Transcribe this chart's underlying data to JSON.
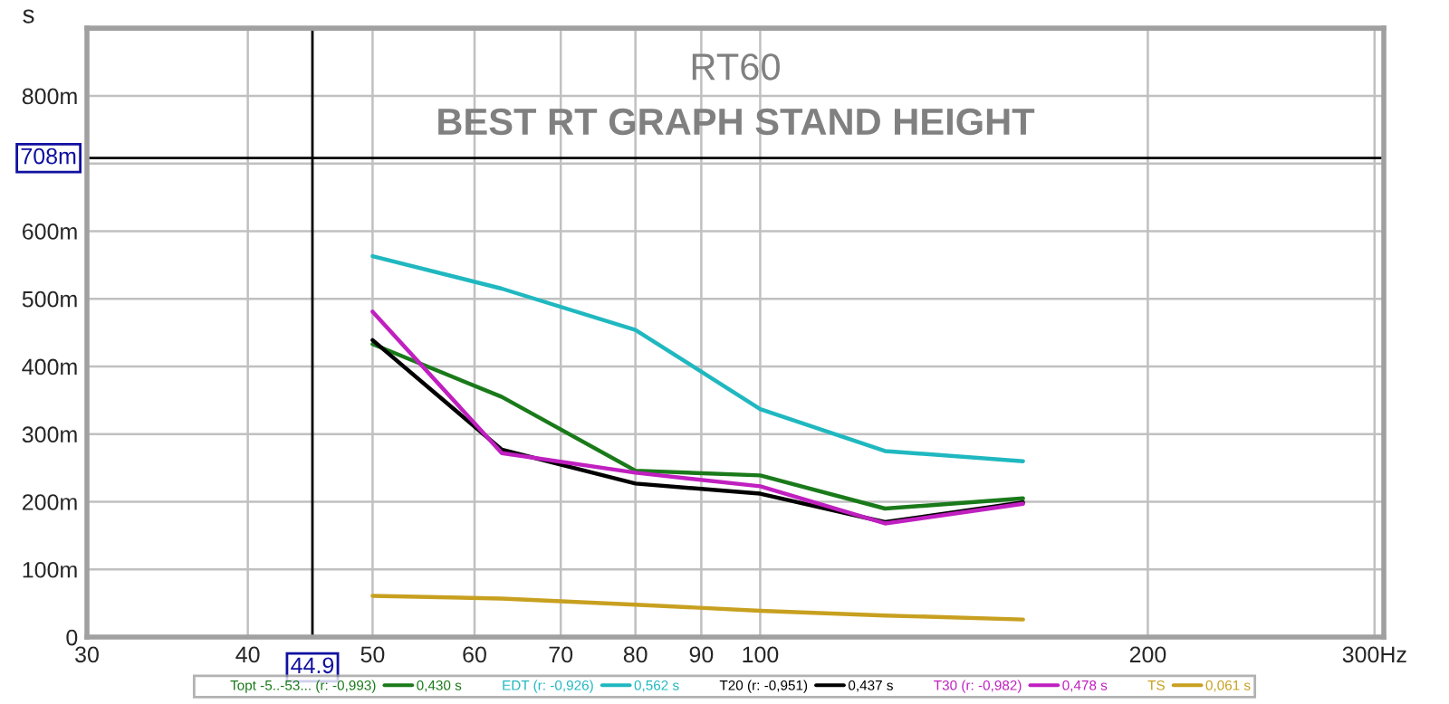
{
  "chart_data": {
    "type": "line",
    "title": "RT60",
    "subtitle": "BEST RT GRAPH STAND HEIGHT",
    "ylabel": "s",
    "x": [
      50,
      63,
      80,
      100,
      125,
      160
    ],
    "series": [
      {
        "name": "Topt -5..-53... (r: -0,993)",
        "color": "#1a7a1a",
        "values": [
          433,
          355,
          246,
          239,
          190,
          205
        ]
      },
      {
        "name": "EDT (r: -0,926)",
        "color": "#20b8c0",
        "values": [
          563,
          515,
          454,
          337,
          275,
          260
        ]
      },
      {
        "name": "T20 (r: -0,951)",
        "color": "#000000",
        "values": [
          439,
          277,
          227,
          212,
          170,
          199
        ]
      },
      {
        "name": "T30 (r: -0,982)",
        "color": "#c020c0",
        "values": [
          481,
          272,
          243,
          223,
          168,
          197
        ]
      },
      {
        "name": "TS",
        "color": "#c8a020",
        "values": [
          61,
          57,
          48,
          39,
          32,
          26
        ]
      }
    ],
    "annotations": [
      "0,430 s",
      "0,562 s",
      "0,437 s",
      "0,478 s",
      "0,061 s"
    ],
    "log": "x",
    "xlim": [
      30,
      305
    ],
    "xticks": [
      30,
      40,
      50,
      60,
      70,
      80,
      90,
      100,
      200,
      {
        "value": 300,
        "label": "300Hz"
      }
    ],
    "ylim": [
      0,
      900
    ],
    "yticks": [
      0,
      {
        "value": 100,
        "label": "100m"
      },
      {
        "value": 200,
        "label": "200m"
      },
      {
        "value": 300,
        "label": "300m"
      },
      {
        "value": 400,
        "label": "400m"
      },
      {
        "value": 500,
        "label": "500m"
      },
      {
        "value": 600,
        "label": "600m"
      },
      {
        "value": 700,
        "label": null
      },
      {
        "value": 800,
        "label": "800m"
      }
    ],
    "ref_lines": [
      {
        "axis": "x",
        "value": 44.9,
        "label": "44.9",
        "color": "#000000"
      },
      {
        "axis": "y",
        "value": 708,
        "label": "708m",
        "color": "#000000"
      }
    ],
    "grid": true,
    "legend": "bottom",
    "line_style": "solid",
    "marker": "none"
  }
}
